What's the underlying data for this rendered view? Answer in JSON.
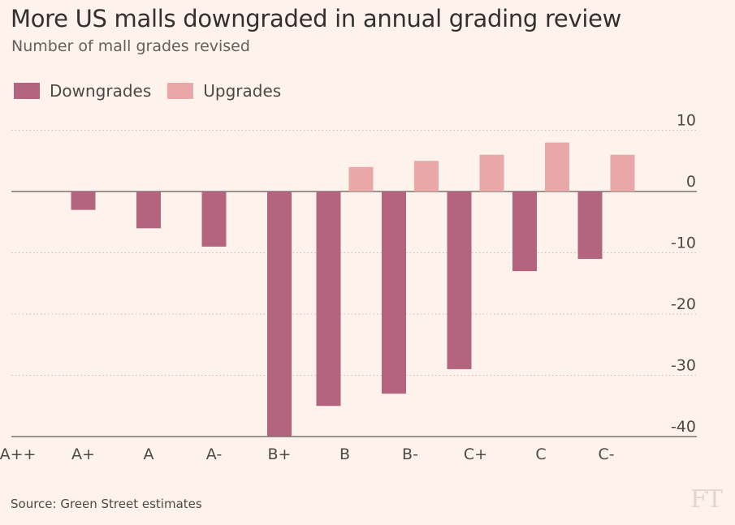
{
  "title": "More US malls downgraded in annual grading review",
  "subtitle": "Number of mall grades revised",
  "source": "Source: Green Street estimates",
  "logo": "FT",
  "colors": {
    "downgrades": "#b5647f",
    "upgrades": "#eaa7a7",
    "background": "#fdf3ec"
  },
  "chart_data": {
    "type": "bar",
    "categories": [
      "A++",
      "A+",
      "A",
      "A-",
      "B+",
      "B",
      "B-",
      "C+",
      "C",
      "C-"
    ],
    "series": [
      {
        "name": "Downgrades",
        "values": [
          0,
          -3,
          -6,
          -9,
          -40,
          -35,
          -33,
          -29,
          -13,
          -11
        ]
      },
      {
        "name": "Upgrades",
        "values": [
          0,
          0,
          0,
          0,
          0,
          4,
          5,
          6,
          8,
          6
        ]
      }
    ],
    "ylim": [
      -40,
      10
    ],
    "yticks": [
      "10",
      "0",
      "-10",
      "-20",
      "-30",
      "-40"
    ],
    "ytick_values": [
      10,
      0,
      -10,
      -20,
      -30,
      -40
    ],
    "legend_position": "top-left",
    "grid": true
  }
}
